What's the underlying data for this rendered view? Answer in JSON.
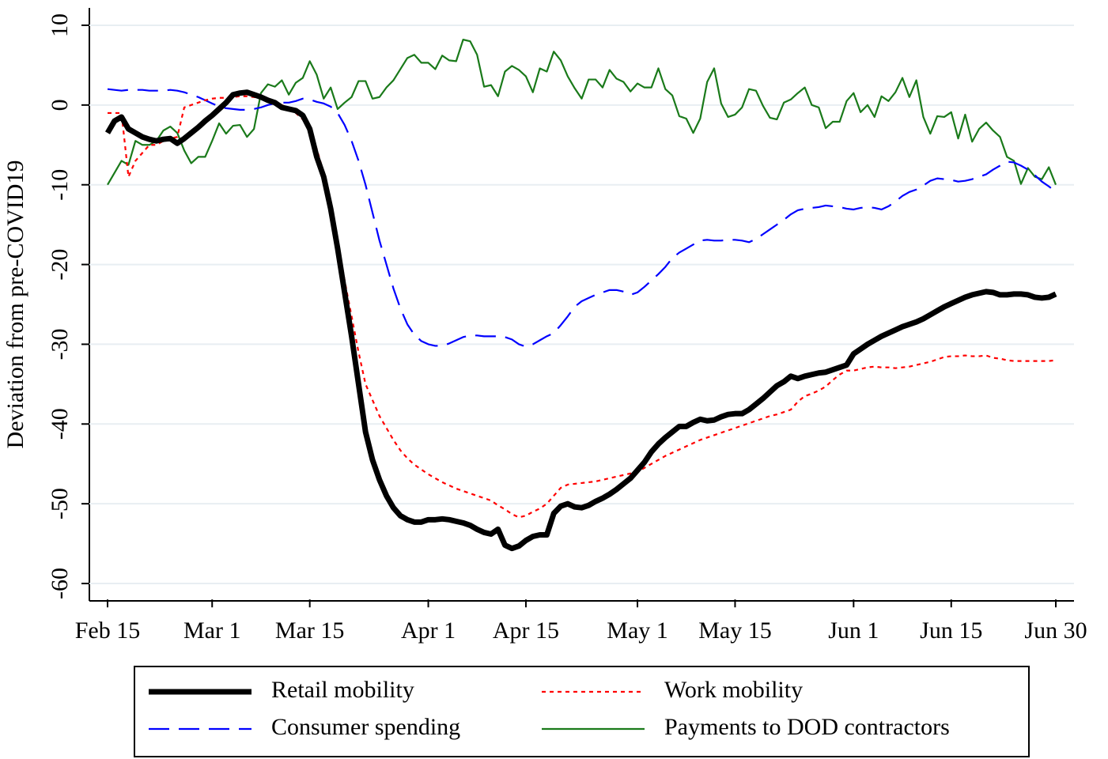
{
  "chart_data": {
    "type": "line",
    "y_label": "Deviation from pre-COVID19",
    "x": [
      "Feb 15",
      "Feb 16",
      "Feb 17",
      "Feb 18",
      "Feb 19",
      "Feb 20",
      "Feb 21",
      "Feb 22",
      "Feb 23",
      "Feb 24",
      "Feb 25",
      "Feb 26",
      "Feb 27",
      "Feb 28",
      "Feb 29",
      "Mar 1",
      "Mar 2",
      "Mar 3",
      "Mar 4",
      "Mar 5",
      "Mar 6",
      "Mar 7",
      "Mar 8",
      "Mar 9",
      "Mar 10",
      "Mar 11",
      "Mar 12",
      "Mar 13",
      "Mar 14",
      "Mar 15",
      "Mar 16",
      "Mar 17",
      "Mar 18",
      "Mar 19",
      "Mar 20",
      "Mar 21",
      "Mar 22",
      "Mar 23",
      "Mar 24",
      "Mar 25",
      "Mar 26",
      "Mar 27",
      "Mar 28",
      "Mar 29",
      "Mar 30",
      "Mar 31",
      "Apr 1",
      "Apr 2",
      "Apr 3",
      "Apr 4",
      "Apr 5",
      "Apr 6",
      "Apr 7",
      "Apr 8",
      "Apr 9",
      "Apr 10",
      "Apr 11",
      "Apr 12",
      "Apr 13",
      "Apr 14",
      "Apr 15",
      "Apr 16",
      "Apr 17",
      "Apr 18",
      "Apr 19",
      "Apr 20",
      "Apr 21",
      "Apr 22",
      "Apr 23",
      "Apr 24",
      "Apr 25",
      "Apr 26",
      "Apr 27",
      "Apr 28",
      "Apr 29",
      "Apr 30",
      "May 1",
      "May 2",
      "May 3",
      "May 4",
      "May 5",
      "May 6",
      "May 7",
      "May 8",
      "May 9",
      "May 10",
      "May 11",
      "May 12",
      "May 13",
      "May 14",
      "May 15",
      "May 16",
      "May 17",
      "May 18",
      "May 19",
      "May 20",
      "May 21",
      "May 22",
      "May 23",
      "May 24",
      "May 25",
      "May 26",
      "May 27",
      "May 28",
      "May 29",
      "May 30",
      "May 31",
      "Jun 1",
      "Jun 2",
      "Jun 3",
      "Jun 4",
      "Jun 5",
      "Jun 6",
      "Jun 7",
      "Jun 8",
      "Jun 9",
      "Jun 10",
      "Jun 11",
      "Jun 12",
      "Jun 13",
      "Jun 14",
      "Jun 15",
      "Jun 16",
      "Jun 17",
      "Jun 18",
      "Jun 19",
      "Jun 20",
      "Jun 21",
      "Jun 22",
      "Jun 23",
      "Jun 24",
      "Jun 25",
      "Jun 26",
      "Jun 27",
      "Jun 28",
      "Jun 29",
      "Jun 30"
    ],
    "xticks": [
      "Feb 15",
      "Mar 1",
      "Mar 15",
      "Apr 1",
      "Apr 15",
      "May 1",
      "May 15",
      "Jun 1",
      "Jun 15",
      "Jun 30"
    ],
    "ylim": [
      -62,
      12
    ],
    "yticks": [
      10,
      0,
      -10,
      -20,
      -30,
      -40,
      -50,
      -60
    ],
    "grid": true,
    "legend": "bottom",
    "series": [
      {
        "name": "Retail mobility",
        "color": "#000000",
        "values": [
          -3.5,
          -2,
          -1.5,
          -3,
          -3.5,
          -4,
          -4.3,
          -4.5,
          -4.3,
          -4.2,
          -4.8,
          -4.2,
          -3.5,
          -2.8,
          -2,
          -1.3,
          -0.5,
          0.3,
          1.3,
          1.5,
          1.6,
          1.3,
          1,
          0.6,
          0.3,
          -0.3,
          -0.5,
          -0.7,
          -1.3,
          -3,
          -6.5,
          -9,
          -13,
          -18,
          -23.5,
          -29,
          -35,
          -41,
          -44.5,
          -47,
          -49,
          -50.5,
          -51.5,
          -52,
          -52.3,
          -52.3,
          -52,
          -52,
          -51.9,
          -52,
          -52.2,
          -52.4,
          -52.7,
          -53.2,
          -53.6,
          -53.8,
          -53.2,
          -55.2,
          -55.6,
          -55.3,
          -54.6,
          -54.1,
          -53.9,
          -53.9,
          -51.2,
          -50.3,
          -50,
          -50.4,
          -50.5,
          -50.2,
          -49.7,
          -49.3,
          -48.8,
          -48.2,
          -47.5,
          -46.8,
          -45.8,
          -44.8,
          -43.5,
          -42.5,
          -41.7,
          -41,
          -40.3,
          -40.3,
          -39.8,
          -39.4,
          -39.6,
          -39.5,
          -39.1,
          -38.8,
          -38.7,
          -38.7,
          -38.2,
          -37.5,
          -36.8,
          -36,
          -35.2,
          -34.7,
          -34,
          -34.3,
          -34,
          -33.8,
          -33.6,
          -33.5,
          -33.2,
          -32.9,
          -32.6,
          -31.2,
          -30.6,
          -30,
          -29.5,
          -29,
          -28.6,
          -28.2,
          -27.8,
          -27.5,
          -27.2,
          -26.8,
          -26.3,
          -25.8,
          -25.3,
          -24.9,
          -24.5,
          -24.1,
          -23.8,
          -23.6,
          -23.4,
          -23.5,
          -23.8,
          -23.8,
          -23.7,
          -23.7,
          -23.8,
          -24.1,
          -24.2,
          -24.1,
          -23.7
        ]
      },
      {
        "name": "Work mobility",
        "color": "#ff0000",
        "values": [
          -1,
          -1,
          -1,
          -9,
          -7,
          -6,
          -5,
          -5,
          -4.5,
          -4.2,
          -4,
          -0.3,
          0,
          0.3,
          0.6,
          0.8,
          0.9,
          0.9,
          1,
          1.1,
          1.1,
          1,
          0.8,
          0.6,
          0.3,
          0,
          -0.4,
          -1,
          -1.8,
          -3,
          -5.5,
          -8.5,
          -12.5,
          -17,
          -22,
          -26.5,
          -31,
          -35,
          -37,
          -39,
          -40.5,
          -42,
          -43.3,
          -44.3,
          -45.1,
          -45.7,
          -46.3,
          -46.8,
          -47.3,
          -47.7,
          -48.1,
          -48.4,
          -48.7,
          -49,
          -49.3,
          -49.6,
          -50.2,
          -50.7,
          -51.3,
          -51.7,
          -51.5,
          -51,
          -50.6,
          -50,
          -49,
          -48,
          -47.6,
          -47.5,
          -47.4,
          -47.3,
          -47.2,
          -47,
          -46.8,
          -46.6,
          -46.4,
          -46.2,
          -46,
          -45.5,
          -45,
          -44.5,
          -44,
          -43.6,
          -43.2,
          -42.8,
          -42.4,
          -42,
          -41.7,
          -41.4,
          -41.1,
          -40.8,
          -40.5,
          -40.2,
          -39.9,
          -39.6,
          -39.3,
          -39,
          -38.8,
          -38.5,
          -38.2,
          -37.2,
          -36.5,
          -36.2,
          -35.8,
          -35.3,
          -34.5,
          -33.8,
          -33.3,
          -33.3,
          -33.1,
          -32.9,
          -32.8,
          -32.9,
          -32.9,
          -33,
          -32.9,
          -32.8,
          -32.6,
          -32.4,
          -32.2,
          -31.9,
          -31.6,
          -31.5,
          -31.5,
          -31.4,
          -31.5,
          -31.5,
          -31.4,
          -31.7,
          -31.8,
          -32,
          -32.1,
          -32.1,
          -32.1,
          -32.1,
          -32.1,
          -32.1,
          -32
        ]
      },
      {
        "name": "Consumer spending",
        "color": "#0000ff",
        "values": [
          2,
          1.9,
          1.8,
          1.9,
          1.9,
          1.9,
          1.8,
          1.8,
          1.8,
          1.9,
          1.8,
          1.6,
          1.3,
          1,
          0.6,
          0.2,
          -0.2,
          -0.4,
          -0.5,
          -0.6,
          -0.6,
          -0.5,
          -0.3,
          0,
          0.2,
          0.3,
          0.3,
          0.5,
          0.8,
          0.7,
          0.4,
          0.2,
          -0.2,
          -1,
          -2.5,
          -4.5,
          -7,
          -10,
          -13.5,
          -17,
          -20,
          -23,
          -25.5,
          -27.5,
          -28.8,
          -29.6,
          -30,
          -30.2,
          -30.2,
          -29.9,
          -29.5,
          -29.1,
          -28.9,
          -28.9,
          -29,
          -29,
          -29,
          -29.1,
          -29.4,
          -30,
          -30.3,
          -30,
          -29.5,
          -29,
          -28.6,
          -27.6,
          -26.5,
          -25.3,
          -24.6,
          -24.2,
          -23.8,
          -23.5,
          -23.2,
          -23.2,
          -23.4,
          -23.8,
          -23.5,
          -22.8,
          -22,
          -21.2,
          -20.3,
          -19.2,
          -18.5,
          -18,
          -17.5,
          -17,
          -16.9,
          -17,
          -17,
          -16.9,
          -16.9,
          -17,
          -17.2,
          -16.8,
          -16.2,
          -15.6,
          -15,
          -14.4,
          -13.7,
          -13.2,
          -13,
          -12.9,
          -12.8,
          -12.6,
          -12.7,
          -12.8,
          -13,
          -13.1,
          -12.9,
          -12.8,
          -12.9,
          -13.1,
          -12.7,
          -12.1,
          -11.4,
          -10.9,
          -10.6,
          -10.1,
          -9.5,
          -9.2,
          -9.3,
          -9.4,
          -9.6,
          -9.5,
          -9.3,
          -9,
          -8.7,
          -8.1,
          -7.6,
          -7.1,
          -7.2,
          -7.6,
          -8.1,
          -8.8,
          -9.6,
          -10.2,
          -10.9
        ]
      },
      {
        "name": "Payments to DOD contractors",
        "color": "#1a7a1a",
        "values": [
          -10,
          -8.5,
          -7,
          -7.5,
          -4.5,
          -5,
          -5,
          -4.5,
          -3.2,
          -2.7,
          -3.5,
          -5.7,
          -7.3,
          -6.5,
          -6.5,
          -4.5,
          -2.3,
          -3.6,
          -2.6,
          -2.5,
          -4,
          -3,
          1.5,
          2.6,
          2.3,
          3.1,
          1.3,
          2.8,
          3.4,
          5.5,
          3.8,
          0.8,
          2.2,
          -0.5,
          0.3,
          1,
          3,
          3,
          0.8,
          1,
          2.2,
          3.1,
          4.5,
          5.9,
          6.3,
          5.3,
          5.3,
          4.5,
          6.2,
          5.6,
          5.5,
          8.2,
          8,
          6.3,
          2.3,
          2.5,
          1.1,
          4.2,
          4.9,
          4.4,
          3.6,
          1.6,
          4.6,
          4.2,
          6.7,
          5.6,
          3.6,
          2.1,
          0.8,
          3.2,
          3.2,
          2.2,
          4.4,
          3.3,
          2.9,
          1.7,
          2.7,
          2.2,
          2.2,
          4.6,
          2,
          1.2,
          -1.4,
          -1.7,
          -3.5,
          -1.7,
          2.9,
          4.6,
          0.2,
          -1.5,
          -1.2,
          -0.3,
          2,
          1.8,
          -0.1,
          -1.6,
          -1.8,
          0.3,
          0.7,
          1.5,
          2.2,
          0,
          -0.3,
          -2.9,
          -2.1,
          -2.1,
          0.5,
          1.5,
          -0.9,
          0,
          -1.5,
          1.1,
          0.5,
          1.6,
          3.4,
          1,
          3.1,
          -1.5,
          -3.6,
          -1.4,
          -1.5,
          -0.9,
          -4.2,
          -1.2,
          -4.6,
          -3,
          -2.2,
          -3.2,
          -4,
          -6.5,
          -7,
          -9.9,
          -7.9,
          -9,
          -9.3,
          -7.8,
          -10
        ]
      }
    ]
  }
}
